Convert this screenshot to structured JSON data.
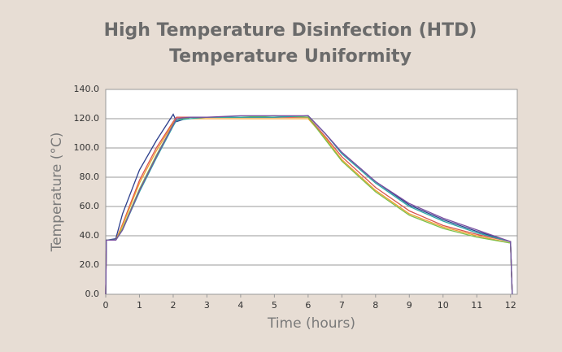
{
  "chart_data": {
    "type": "line",
    "title": [
      "High Temperature Disinfection (HTD)",
      "Temperature Uniformity"
    ],
    "x_label": "Time (hours)",
    "y_label": "Temperature (°C)",
    "x": [
      0,
      0.02,
      0.3,
      0.5,
      1,
      1.5,
      2,
      2.1,
      2.5,
      3,
      4,
      5,
      6,
      6.5,
      7,
      8,
      9,
      10,
      11,
      12,
      12.05
    ],
    "series": [
      {
        "color": "#2c3e8c",
        "values": [
          0,
          37,
          38,
          55,
          85,
          105,
          123,
          118,
          121,
          121,
          121,
          121,
          122,
          110,
          97,
          77,
          61,
          51,
          43,
          36,
          0
        ]
      },
      {
        "color": "#d9534f",
        "values": [
          0,
          37,
          37,
          48,
          78,
          100,
          118,
          121,
          121,
          121,
          121,
          121,
          121,
          108,
          94,
          73,
          57,
          47,
          41,
          36,
          0
        ]
      },
      {
        "color": "#f0a030",
        "values": [
          0,
          37,
          37,
          47,
          76,
          98,
          117,
          120,
          120,
          120,
          120,
          120,
          120,
          107,
          92,
          71,
          55,
          46,
          40,
          35,
          0
        ]
      },
      {
        "color": "#7cc04a",
        "values": [
          0,
          37,
          37,
          45,
          72,
          95,
          116,
          119,
          121,
          121,
          121,
          122,
          121,
          106,
          91,
          70,
          54,
          45,
          39,
          35,
          0
        ]
      },
      {
        "color": "#2aa6a6",
        "values": [
          0,
          37,
          37,
          44,
          70,
          93,
          115,
          119,
          120,
          121,
          121,
          121,
          122,
          110,
          96,
          76,
          60,
          50,
          42,
          36,
          0
        ]
      },
      {
        "color": "#7a4fa0",
        "values": [
          0,
          37,
          37,
          44,
          71,
          94,
          116,
          120,
          121,
          121,
          122,
          122,
          122,
          110,
          97,
          77,
          62,
          52,
          44,
          36,
          0
        ]
      }
    ],
    "xlim": [
      0,
      12.2
    ],
    "xticks": [
      0,
      1,
      2,
      3,
      4,
      5,
      6,
      7,
      8,
      9,
      10,
      11,
      12
    ],
    "ylim": [
      0,
      140
    ],
    "yticks": [
      {
        "value": 0,
        "label": "0.0"
      },
      {
        "value": 20,
        "label": "20.0"
      },
      {
        "value": 40,
        "label": "40.0"
      },
      {
        "value": 60,
        "label": "60.0"
      },
      {
        "value": 80,
        "label": "80.0"
      },
      {
        "value": 100,
        "label": "100.0"
      },
      {
        "value": 120,
        "label": "120.0"
      },
      {
        "value": 140,
        "label": "140.0"
      }
    ],
    "grid": true
  }
}
